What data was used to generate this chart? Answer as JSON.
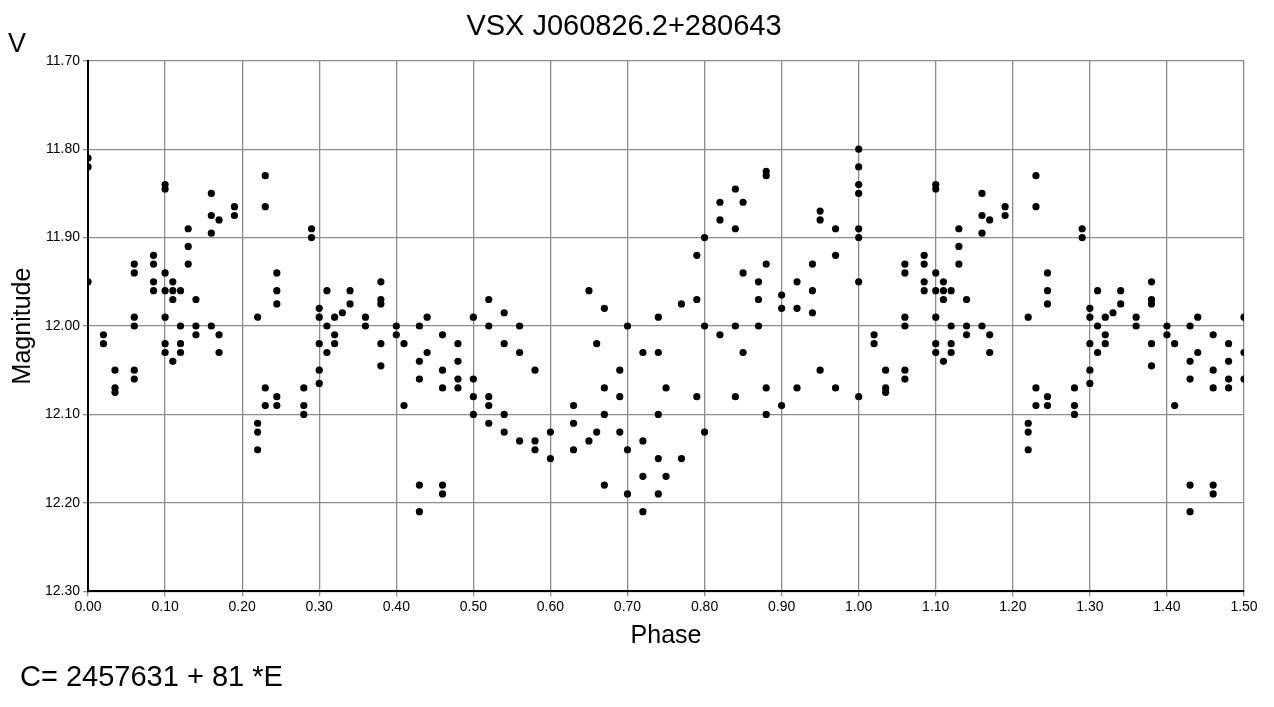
{
  "chart_data": {
    "type": "scatter",
    "title": "VSX J060826.2+280643",
    "xlabel": "Phase",
    "ylabel": "Magnitude",
    "annotations": [
      "V",
      "C= 2457631 + 81 *E"
    ],
    "marker": "circle",
    "grid": true,
    "legend": false,
    "xlim": [
      0,
      1.5
    ],
    "ylim": [
      12.3,
      11.7
    ],
    "xticks": [
      {
        "value": 0,
        "label": "0.00"
      },
      {
        "value": 0.1,
        "label": "0.10"
      },
      {
        "value": 0.2,
        "label": "0.20"
      },
      {
        "value": 0.3,
        "label": "0.30"
      },
      {
        "value": 0.4,
        "label": "0.40"
      },
      {
        "value": 0.5,
        "label": "0.50"
      },
      {
        "value": 0.6,
        "label": "0.60"
      },
      {
        "value": 0.7,
        "label": "0.70"
      },
      {
        "value": 0.8,
        "label": "0.80"
      },
      {
        "value": 0.9,
        "label": "0.90"
      },
      {
        "value": 1,
        "label": "1.00"
      },
      {
        "value": 1.1,
        "label": "1.10"
      },
      {
        "value": 1.2,
        "label": "1.20"
      },
      {
        "value": 1.3,
        "label": "1.30"
      },
      {
        "value": 1.4,
        "label": "1.40"
      },
      {
        "value": 1.5,
        "label": "1.50"
      }
    ],
    "yticks": [
      {
        "value": 11.7,
        "label": "11.70"
      },
      {
        "value": 11.8,
        "label": "11.80"
      },
      {
        "value": 11.9,
        "label": "11.90"
      },
      {
        "value": 12,
        "label": "12.00"
      },
      {
        "value": 12.1,
        "label": "12.10"
      },
      {
        "value": 12.2,
        "label": "12.20"
      },
      {
        "value": 12.3,
        "label": "12.30"
      }
    ],
    "series": [
      {
        "color": "#000000",
        "x": [
          0,
          0,
          0,
          0.02,
          0.02,
          0.035,
          0.035,
          0.035,
          0.06,
          0.06,
          0.06,
          0.06,
          0.06,
          0.06,
          0.085,
          0.085,
          0.085,
          0.085,
          0.1,
          0.1,
          0.1,
          0.1,
          0.1,
          0.1,
          0.1,
          0.11,
          0.11,
          0.11,
          0.11,
          0.12,
          0.12,
          0.12,
          0.12,
          0.13,
          0.13,
          0.13,
          0.14,
          0.14,
          0.14,
          0.16,
          0.16,
          0.16,
          0.16,
          0.17,
          0.17,
          0.17,
          0.19,
          0.19,
          0.22,
          0.22,
          0.22,
          0.22,
          0.23,
          0.23,
          0.23,
          0.23,
          0.245,
          0.245,
          0.245,
          0.245,
          0.245,
          0.28,
          0.28,
          0.28,
          0.29,
          0.29,
          0.3,
          0.3,
          0.3,
          0.3,
          0.3,
          0.31,
          0.31,
          0.31,
          0.32,
          0.32,
          0.32,
          0.33,
          0.34,
          0.34,
          0.36,
          0.36,
          0.38,
          0.38,
          0.38,
          0.38,
          0.38,
          0.4,
          0.4,
          0.41,
          0.41,
          0.43,
          0.43,
          0.43,
          0.43,
          0.43,
          0.44,
          0.44,
          0.46,
          0.46,
          0.46,
          0.46,
          0.46,
          0.48,
          0.48,
          0.48,
          0.48,
          0.5,
          0.5,
          0.5,
          0.5,
          0.52,
          0.52,
          0.52,
          0.52,
          0.52,
          0.54,
          0.54,
          0.54,
          0.54,
          0.56,
          0.56,
          0.56,
          0.58,
          0.58,
          0.58,
          0.6,
          0.6,
          0.63,
          0.63,
          0.63,
          0.65,
          0.65,
          0.66,
          0.66,
          0.67,
          0.67,
          0.67,
          0.67,
          0.69,
          0.69,
          0.69,
          0.7,
          0.7,
          0.7,
          0.72,
          0.72,
          0.72,
          0.72,
          0.74,
          0.74,
          0.74,
          0.74,
          0.74,
          0.75,
          0.75,
          0.77,
          0.77,
          0.79,
          0.79,
          0.79,
          0.8,
          0.8,
          0.8,
          0.82,
          0.82,
          0.82,
          0.84,
          0.84,
          0.84,
          0.84,
          0.85,
          0.85,
          0.85,
          0.87,
          0.87,
          0.87,
          0.88,
          0.88,
          0.88,
          0.88,
          0.88,
          0.9,
          0.9,
          0.9,
          0.92,
          0.92,
          0.92,
          0.94,
          0.94,
          0.94,
          0.95,
          0.95,
          0.95,
          0.97,
          0.97,
          0.97,
          1,
          1,
          1,
          1,
          1,
          1,
          1,
          1,
          1.02,
          1.02,
          1.035,
          1.035,
          1.035,
          1.06,
          1.06,
          1.06,
          1.06,
          1.06,
          1.06,
          1.085,
          1.085,
          1.085,
          1.085,
          1.1,
          1.1,
          1.1,
          1.1,
          1.1,
          1.1,
          1.1,
          1.11,
          1.11,
          1.11,
          1.11,
          1.12,
          1.12,
          1.12,
          1.12,
          1.13,
          1.13,
          1.13,
          1.14,
          1.14,
          1.14,
          1.16,
          1.16,
          1.16,
          1.16,
          1.17,
          1.17,
          1.17,
          1.19,
          1.19,
          1.22,
          1.22,
          1.22,
          1.22,
          1.23,
          1.23,
          1.23,
          1.23,
          1.245,
          1.245,
          1.245,
          1.245,
          1.245,
          1.28,
          1.28,
          1.28,
          1.29,
          1.29,
          1.3,
          1.3,
          1.3,
          1.3,
          1.3,
          1.31,
          1.31,
          1.31,
          1.32,
          1.32,
          1.32,
          1.33,
          1.34,
          1.34,
          1.36,
          1.36,
          1.38,
          1.38,
          1.38,
          1.38,
          1.38,
          1.4,
          1.4,
          1.41,
          1.41,
          1.43,
          1.43,
          1.43,
          1.43,
          1.43,
          1.44,
          1.44,
          1.46,
          1.46,
          1.46,
          1.46,
          1.46,
          1.48,
          1.48,
          1.48,
          1.48,
          1.5,
          1.5,
          1.5
        ],
        "values": [
          11.81,
          11.82,
          11.95,
          12.01,
          12.02,
          12.05,
          12.07,
          12.075,
          11.94,
          11.93,
          11.99,
          12,
          12.05,
          12.06,
          11.92,
          11.93,
          11.95,
          11.96,
          11.84,
          11.845,
          11.94,
          11.96,
          11.99,
          12.02,
          12.03,
          11.95,
          11.97,
          11.96,
          12.04,
          11.96,
          12,
          12.02,
          12.03,
          11.89,
          11.91,
          11.93,
          11.97,
          12,
          12.01,
          11.85,
          11.875,
          11.895,
          12,
          11.88,
          12.01,
          12.03,
          11.865,
          11.875,
          11.99,
          12.11,
          12.12,
          12.14,
          11.83,
          11.865,
          12.07,
          12.09,
          11.94,
          11.96,
          11.975,
          12.08,
          12.09,
          12.07,
          12.09,
          12.1,
          11.89,
          11.9,
          11.98,
          11.99,
          12.02,
          12.05,
          12.065,
          11.96,
          12,
          12.03,
          11.99,
          12.01,
          12.02,
          11.985,
          11.96,
          11.975,
          11.99,
          12,
          11.95,
          11.97,
          11.975,
          12.02,
          12.045,
          12,
          12.01,
          12.09,
          12.02,
          12,
          12.04,
          12.06,
          12.18,
          12.21,
          11.99,
          12.03,
          12.01,
          12.05,
          12.07,
          12.18,
          12.19,
          12.04,
          12.06,
          12.07,
          12.02,
          11.99,
          12.06,
          12.08,
          12.1,
          11.97,
          12,
          12.08,
          12.09,
          12.11,
          11.985,
          12.02,
          12.1,
          12.12,
          12,
          12.03,
          12.13,
          12.05,
          12.13,
          12.14,
          12.12,
          12.15,
          12.09,
          12.11,
          12.14,
          11.96,
          12.13,
          12.02,
          12.12,
          11.98,
          12.07,
          12.1,
          12.18,
          12.05,
          12.08,
          12.12,
          12,
          12.14,
          12.19,
          12.03,
          12.13,
          12.17,
          12.21,
          11.99,
          12.03,
          12.1,
          12.15,
          12.19,
          12.07,
          12.17,
          11.975,
          12.15,
          11.92,
          11.97,
          12.08,
          11.9,
          12,
          12.12,
          11.86,
          11.88,
          12.01,
          11.845,
          11.89,
          12,
          12.08,
          11.86,
          11.94,
          12.03,
          11.95,
          11.97,
          12,
          11.825,
          11.83,
          11.93,
          12.07,
          12.1,
          11.965,
          11.98,
          12.09,
          11.95,
          11.98,
          12.07,
          11.93,
          11.96,
          11.985,
          11.87,
          11.88,
          12.05,
          11.89,
          11.92,
          12.07,
          11.8,
          11.82,
          11.84,
          11.85,
          11.89,
          11.9,
          11.95,
          12.08,
          12.01,
          12.02,
          12.05,
          12.07,
          12.075,
          11.94,
          11.93,
          11.99,
          12,
          12.05,
          12.06,
          11.92,
          11.93,
          11.95,
          11.96,
          11.84,
          11.845,
          11.94,
          11.96,
          11.99,
          12.02,
          12.03,
          11.95,
          11.97,
          11.96,
          12.04,
          11.96,
          12,
          12.02,
          12.03,
          11.89,
          11.91,
          11.93,
          11.97,
          12,
          12.01,
          11.85,
          11.875,
          11.895,
          12,
          11.88,
          12.01,
          12.03,
          11.865,
          11.875,
          11.99,
          12.11,
          12.12,
          12.14,
          11.83,
          11.865,
          12.07,
          12.09,
          11.94,
          11.96,
          11.975,
          12.08,
          12.09,
          12.07,
          12.09,
          12.1,
          11.89,
          11.9,
          11.98,
          11.99,
          12.02,
          12.05,
          12.065,
          11.96,
          12,
          12.03,
          11.99,
          12.01,
          12.02,
          11.985,
          11.96,
          11.975,
          11.99,
          12,
          11.95,
          11.97,
          11.975,
          12.02,
          12.045,
          12,
          12.01,
          12.09,
          12.02,
          12,
          12.04,
          12.06,
          12.18,
          12.21,
          11.99,
          12.03,
          12.01,
          12.05,
          12.07,
          12.18,
          12.19,
          12.04,
          12.06,
          12.07,
          12.02,
          11.99,
          12.03,
          12.06
        ]
      }
    ]
  }
}
